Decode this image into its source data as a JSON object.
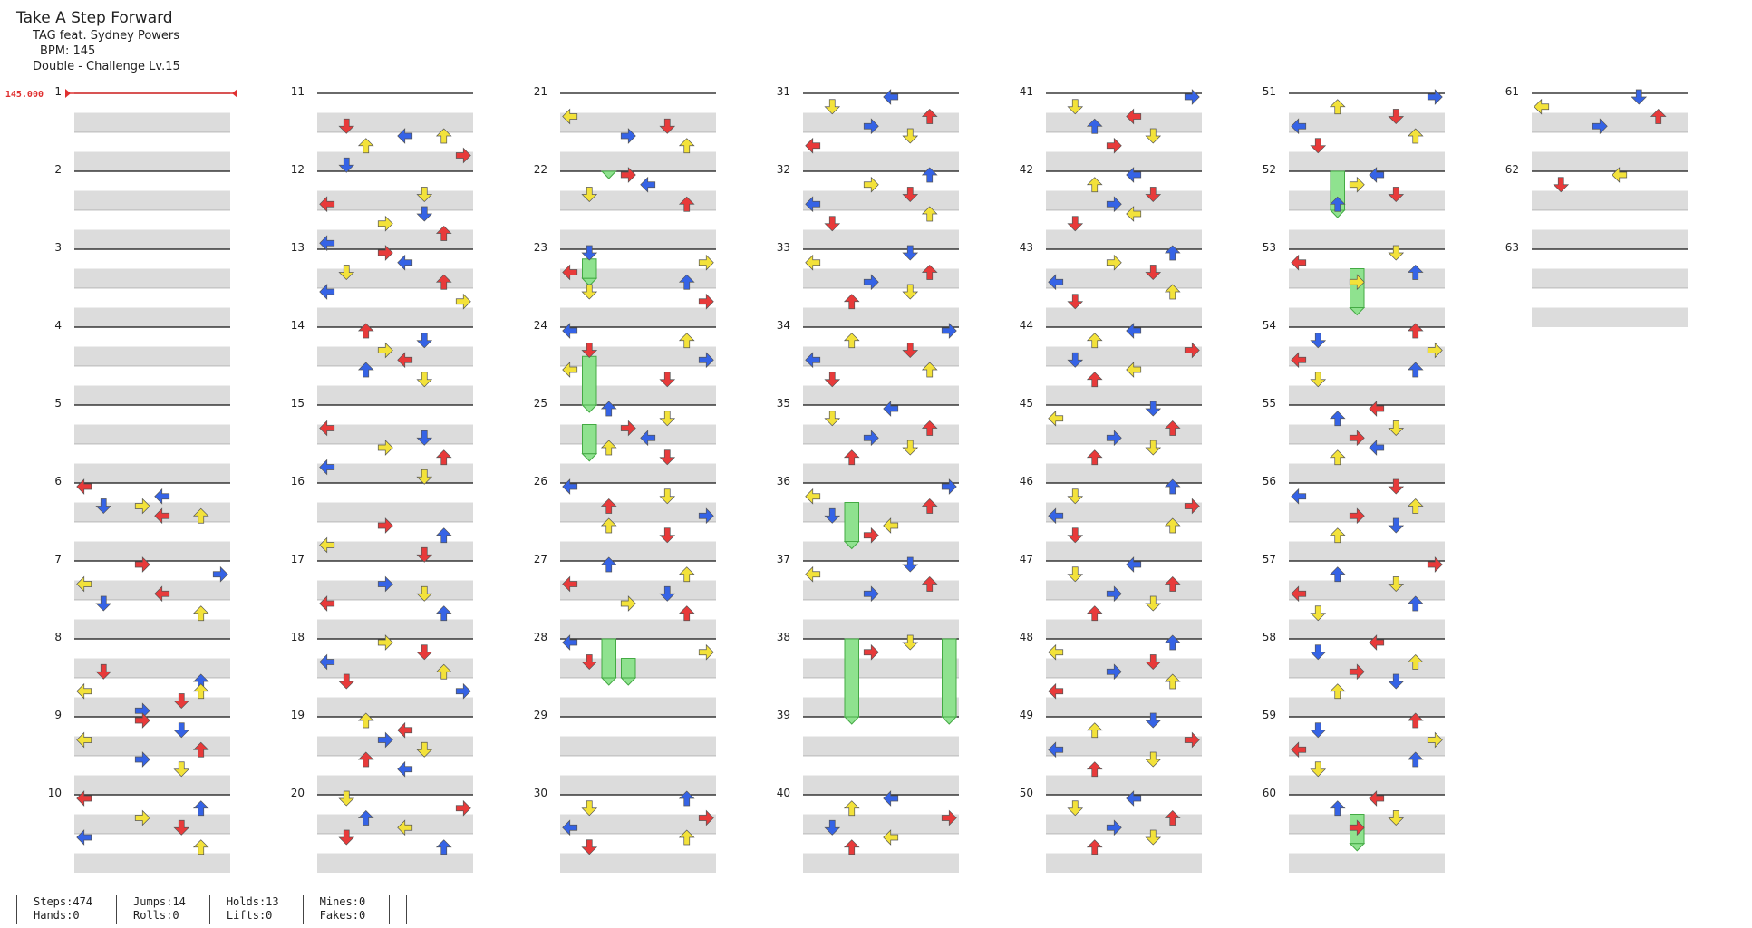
{
  "song": {
    "title": "Take A Step Forward",
    "artist": "TAG feat. Sydney Powers",
    "bpm_label": "BPM: 145",
    "difficulty_label": "Double - Challenge Lv.15"
  },
  "bpm_marker": "145.000",
  "measure_count": 63,
  "stats": [
    {
      "top": "Steps:474",
      "bottom": "Hands:0"
    },
    {
      "top": "Jumps:14",
      "bottom": "Rolls:0"
    },
    {
      "top": "Holds:13",
      "bottom": "Lifts:0"
    },
    {
      "top": "Mines:0",
      "bottom": "Fakes:0"
    }
  ],
  "colors": {
    "quarter": "#e83a3a",
    "eighth": "#3563e6",
    "sixteenth": "#f3e23a",
    "hold": "#8fe28f",
    "band": "#dcdcdc",
    "bpm_line": "#e03030"
  },
  "notes": [
    [
      6,
      0,
      0
    ],
    [
      6,
      1,
      0
    ],
    [
      6,
      2,
      3
    ],
    [
      6,
      3,
      0
    ],
    [
      6,
      2,
      1
    ],
    [
      6,
      3,
      2
    ],
    [
      7,
      0,
      3
    ],
    [
      7,
      1,
      3
    ],
    [
      7,
      2,
      0
    ],
    [
      7,
      3,
      0
    ],
    [
      7,
      4,
      1
    ],
    [
      7,
      5,
      2
    ],
    [
      8,
      3,
      1
    ],
    [
      8,
      4,
      2
    ],
    [
      8,
      5,
      0
    ],
    [
      8,
      6,
      1
    ],
    [
      8,
      7,
      3
    ],
    [
      8,
      5,
      2
    ],
    [
      9,
      0,
      3
    ],
    [
      9,
      1,
      1
    ],
    [
      9,
      2,
      0
    ],
    [
      9,
      3,
      2
    ],
    [
      9,
      4,
      3
    ],
    [
      9,
      5,
      1
    ],
    [
      10,
      0,
      0
    ],
    [
      10,
      1,
      2
    ],
    [
      10,
      2,
      3
    ],
    [
      10,
      3,
      1
    ],
    [
      10,
      4,
      0
    ],
    [
      10,
      5,
      2
    ],
    [
      11,
      3,
      1
    ],
    [
      11,
      4,
      0
    ],
    [
      11,
      5,
      2
    ],
    [
      11,
      6,
      3
    ],
    [
      11,
      7,
      1
    ],
    [
      11,
      4,
      2
    ],
    [
      12,
      3,
      0
    ],
    [
      12,
      4,
      1
    ],
    [
      12,
      5,
      3
    ],
    [
      12,
      6,
      2
    ],
    [
      12,
      7,
      0
    ],
    [
      12,
      2,
      1
    ],
    [
      13,
      0,
      3
    ],
    [
      13,
      1,
      0
    ],
    [
      13,
      2,
      1
    ],
    [
      13,
      3,
      2
    ],
    [
      13,
      4,
      0
    ],
    [
      13,
      5,
      3
    ],
    [
      14,
      0,
      2
    ],
    [
      14,
      1,
      1
    ],
    [
      14,
      2,
      3
    ],
    [
      14,
      3,
      0
    ],
    [
      14,
      4,
      2
    ],
    [
      14,
      5,
      1
    ],
    [
      15,
      2,
      0
    ],
    [
      15,
      3,
      1
    ],
    [
      15,
      4,
      3
    ],
    [
      15,
      5,
      2
    ],
    [
      15,
      6,
      0
    ],
    [
      15,
      7,
      1
    ],
    [
      16,
      4,
      3
    ],
    [
      16,
      5,
      2
    ],
    [
      16,
      6,
      0
    ],
    [
      16,
      7,
      1
    ],
    [
      17,
      2,
      3
    ],
    [
      17,
      3,
      1
    ],
    [
      17,
      4,
      0
    ],
    [
      17,
      5,
      2
    ],
    [
      18,
      0,
      3
    ],
    [
      18,
      1,
      1
    ],
    [
      18,
      2,
      0
    ],
    [
      18,
      3,
      2
    ],
    [
      18,
      4,
      1
    ],
    [
      18,
      5,
      3
    ],
    [
      19,
      0,
      2
    ],
    [
      19,
      1,
      0
    ],
    [
      19,
      2,
      3
    ],
    [
      19,
      3,
      1
    ],
    [
      19,
      4,
      2
    ],
    [
      19,
      5,
      0
    ],
    [
      20,
      0,
      1
    ],
    [
      20,
      1,
      3
    ],
    [
      20,
      2,
      2
    ],
    [
      20,
      3,
      0
    ],
    [
      20,
      4,
      1
    ],
    [
      20,
      5,
      2
    ],
    [
      21,
      2,
      0
    ],
    [
      21,
      3,
      1
    ],
    [
      21,
      4,
      3
    ],
    [
      21,
      5,
      2
    ],
    [
      22,
      0,
      3
    ],
    [
      22,
      1,
      0
    ],
    [
      22,
      2,
      1
    ],
    [
      22,
      3,
      2
    ],
    [
      23,
      0,
      1
    ],
    [
      23,
      1,
      3
    ],
    [
      23,
      2,
      0
    ],
    [
      23,
      3,
      2
    ],
    [
      23,
      4,
      1
    ],
    [
      23,
      5,
      3
    ],
    [
      24,
      0,
      0
    ],
    [
      24,
      1,
      2
    ],
    [
      24,
      2,
      1
    ],
    [
      24,
      3,
      3
    ],
    [
      24,
      4,
      0
    ],
    [
      24,
      5,
      1
    ],
    [
      25,
      0,
      2
    ],
    [
      25,
      1,
      1
    ],
    [
      25,
      2,
      3
    ],
    [
      25,
      3,
      0
    ],
    [
      25,
      4,
      2
    ],
    [
      25,
      5,
      1
    ],
    [
      26,
      0,
      0
    ],
    [
      26,
      1,
      1
    ],
    [
      26,
      2,
      2
    ],
    [
      26,
      3,
      3
    ],
    [
      26,
      4,
      2
    ],
    [
      26,
      5,
      1
    ],
    [
      27,
      0,
      2
    ],
    [
      27,
      1,
      2
    ],
    [
      27,
      2,
      0
    ],
    [
      27,
      3,
      1
    ],
    [
      27,
      4,
      3
    ],
    [
      27,
      5,
      2
    ],
    [
      28,
      0,
      0
    ],
    [
      28,
      1,
      3
    ],
    [
      28,
      2,
      1
    ],
    [
      30,
      0,
      2
    ],
    [
      30,
      1,
      1
    ],
    [
      30,
      2,
      3
    ],
    [
      30,
      3,
      0
    ],
    [
      30,
      4,
      2
    ],
    [
      30,
      5,
      1
    ],
    [
      31,
      0,
      0
    ],
    [
      31,
      1,
      1
    ],
    [
      31,
      2,
      2
    ],
    [
      31,
      3,
      3
    ],
    [
      31,
      4,
      1
    ],
    [
      31,
      5,
      0
    ],
    [
      32,
      0,
      2
    ],
    [
      32,
      1,
      3
    ],
    [
      32,
      2,
      1
    ],
    [
      32,
      3,
      0
    ],
    [
      32,
      4,
      2
    ],
    [
      32,
      5,
      1
    ],
    [
      33,
      0,
      1
    ],
    [
      33,
      1,
      0
    ],
    [
      33,
      2,
      2
    ],
    [
      33,
      3,
      3
    ],
    [
      33,
      4,
      1
    ],
    [
      33,
      5,
      2
    ],
    [
      34,
      0,
      3
    ],
    [
      34,
      1,
      2
    ],
    [
      34,
      2,
      1
    ],
    [
      34,
      3,
      0
    ],
    [
      34,
      4,
      2
    ],
    [
      34,
      5,
      1
    ],
    [
      35,
      0,
      0
    ],
    [
      35,
      1,
      1
    ],
    [
      35,
      2,
      2
    ],
    [
      35,
      3,
      3
    ],
    [
      35,
      4,
      1
    ],
    [
      35,
      5,
      2
    ],
    [
      36,
      0,
      3
    ],
    [
      36,
      1,
      0
    ],
    [
      36,
      2,
      2
    ],
    [
      36,
      3,
      1
    ],
    [
      36,
      4,
      0
    ],
    [
      36,
      5,
      3
    ],
    [
      37,
      0,
      1
    ],
    [
      37,
      1,
      0
    ],
    [
      37,
      2,
      2
    ],
    [
      37,
      3,
      3
    ],
    [
      38,
      0,
      1
    ],
    [
      38,
      1,
      3
    ],
    [
      40,
      0,
      0
    ],
    [
      40,
      1,
      2
    ],
    [
      40,
      2,
      3
    ],
    [
      40,
      3,
      1
    ],
    [
      40,
      4,
      0
    ],
    [
      40,
      5,
      2
    ],
    [
      41,
      0,
      3
    ],
    [
      41,
      1,
      1
    ],
    [
      41,
      2,
      0
    ],
    [
      41,
      3,
      2
    ],
    [
      41,
      4,
      1
    ],
    [
      41,
      5,
      3
    ],
    [
      42,
      0,
      0
    ],
    [
      42,
      1,
      2
    ],
    [
      42,
      2,
      1
    ],
    [
      42,
      3,
      3
    ],
    [
      42,
      4,
      0
    ],
    [
      42,
      5,
      1
    ],
    [
      43,
      0,
      2
    ],
    [
      43,
      1,
      3
    ],
    [
      43,
      2,
      1
    ],
    [
      43,
      3,
      0
    ],
    [
      43,
      4,
      2
    ],
    [
      43,
      5,
      1
    ],
    [
      44,
      0,
      0
    ],
    [
      44,
      1,
      2
    ],
    [
      44,
      2,
      3
    ],
    [
      44,
      3,
      1
    ],
    [
      44,
      4,
      0
    ],
    [
      44,
      5,
      2
    ],
    [
      45,
      0,
      1
    ],
    [
      45,
      1,
      0
    ],
    [
      45,
      2,
      2
    ],
    [
      45,
      3,
      3
    ],
    [
      45,
      4,
      1
    ],
    [
      45,
      5,
      2
    ],
    [
      46,
      0,
      2
    ],
    [
      46,
      1,
      1
    ],
    [
      46,
      2,
      3
    ],
    [
      46,
      3,
      0
    ],
    [
      46,
      4,
      2
    ],
    [
      46,
      5,
      1
    ],
    [
      47,
      0,
      0
    ],
    [
      47,
      1,
      1
    ],
    [
      47,
      2,
      2
    ],
    [
      47,
      3,
      3
    ],
    [
      47,
      4,
      1
    ],
    [
      47,
      5,
      2
    ],
    [
      48,
      0,
      2
    ],
    [
      48,
      1,
      0
    ],
    [
      48,
      2,
      1
    ],
    [
      48,
      3,
      3
    ],
    [
      48,
      4,
      2
    ],
    [
      48,
      5,
      0
    ],
    [
      49,
      0,
      1
    ],
    [
      49,
      1,
      2
    ],
    [
      49,
      2,
      3
    ],
    [
      49,
      3,
      0
    ],
    [
      49,
      4,
      1
    ],
    [
      49,
      5,
      2
    ],
    [
      50,
      0,
      0
    ],
    [
      50,
      1,
      1
    ],
    [
      50,
      2,
      2
    ],
    [
      50,
      3,
      3
    ],
    [
      50,
      4,
      1
    ],
    [
      50,
      5,
      2
    ],
    [
      51,
      0,
      3
    ],
    [
      51,
      1,
      2
    ],
    [
      51,
      2,
      1
    ],
    [
      51,
      3,
      0
    ],
    [
      51,
      4,
      2
    ],
    [
      51,
      5,
      1
    ],
    [
      52,
      0,
      0
    ],
    [
      52,
      1,
      3
    ],
    [
      52,
      2,
      1
    ],
    [
      52,
      3,
      2
    ],
    [
      53,
      0,
      1
    ],
    [
      53,
      1,
      0
    ],
    [
      53,
      2,
      2
    ],
    [
      53,
      3,
      3
    ],
    [
      54,
      0,
      2
    ],
    [
      54,
      1,
      1
    ],
    [
      54,
      2,
      3
    ],
    [
      54,
      3,
      0
    ],
    [
      54,
      4,
      2
    ],
    [
      54,
      5,
      1
    ],
    [
      55,
      0,
      0
    ],
    [
      55,
      1,
      2
    ],
    [
      55,
      2,
      1
    ],
    [
      55,
      3,
      3
    ],
    [
      55,
      4,
      0
    ],
    [
      55,
      5,
      2
    ],
    [
      56,
      0,
      1
    ],
    [
      56,
      1,
      0
    ],
    [
      56,
      2,
      2
    ],
    [
      56,
      3,
      3
    ],
    [
      56,
      4,
      1
    ],
    [
      56,
      5,
      2
    ],
    [
      57,
      0,
      3
    ],
    [
      57,
      1,
      2
    ],
    [
      57,
      2,
      1
    ],
    [
      57,
      3,
      0
    ],
    [
      57,
      4,
      2
    ],
    [
      57,
      5,
      1
    ],
    [
      58,
      0,
      0
    ],
    [
      58,
      1,
      1
    ],
    [
      58,
      2,
      2
    ],
    [
      58,
      3,
      3
    ],
    [
      58,
      4,
      1
    ],
    [
      58,
      5,
      2
    ],
    [
      59,
      0,
      2
    ],
    [
      59,
      1,
      1
    ],
    [
      59,
      2,
      3
    ],
    [
      59,
      3,
      0
    ],
    [
      59,
      4,
      2
    ],
    [
      59,
      5,
      1
    ],
    [
      60,
      0,
      0
    ],
    [
      60,
      1,
      2
    ],
    [
      60,
      2,
      1
    ],
    [
      60,
      3,
      3
    ],
    [
      61,
      0,
      1
    ],
    [
      61,
      1,
      0
    ],
    [
      61,
      2,
      2
    ],
    [
      61,
      3,
      3
    ],
    [
      62,
      0,
      0
    ],
    [
      62,
      1,
      1
    ]
  ],
  "holds": [
    [
      22,
      0,
      0,
      2
    ],
    [
      23,
      1,
      2,
      1
    ],
    [
      24,
      3,
      5,
      1
    ],
    [
      25,
      2,
      3,
      1
    ],
    [
      28,
      0,
      4,
      2
    ],
    [
      28,
      2,
      2,
      3
    ],
    [
      36,
      2,
      4,
      2
    ],
    [
      38,
      0,
      8,
      2
    ],
    [
      38,
      0,
      8,
      7
    ],
    [
      52,
      0,
      4,
      2
    ],
    [
      53,
      2,
      4,
      3
    ],
    [
      60,
      2,
      3,
      3
    ]
  ]
}
